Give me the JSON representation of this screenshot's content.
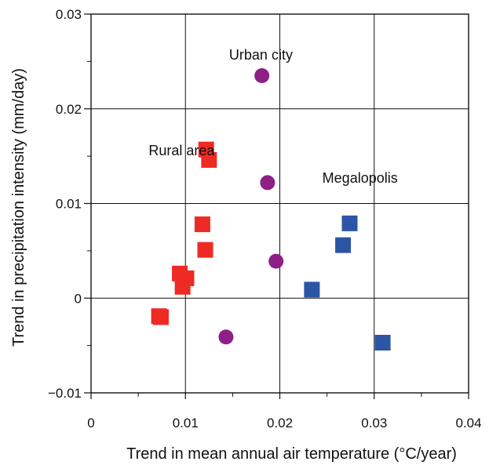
{
  "chart_data": {
    "type": "scatter",
    "xlabel": "Trend in mean annual air temperature (°C/year)",
    "ylabel": "Trend in precipitation intensity (mm/day)",
    "xlim": [
      0,
      0.04
    ],
    "ylim": [
      -0.01,
      0.03
    ],
    "grid": true,
    "x_ticks": [
      {
        "value": 0,
        "label": "0"
      },
      {
        "value": 0.01,
        "label": "0.01"
      },
      {
        "value": 0.02,
        "label": "0.02"
      },
      {
        "value": 0.03,
        "label": "0.03"
      },
      {
        "value": 0.04,
        "label": "0.04"
      }
    ],
    "y_ticks": [
      {
        "value": -0.01,
        "label": "−0.01"
      },
      {
        "value": 0,
        "label": "0"
      },
      {
        "value": 0.01,
        "label": "0.01"
      },
      {
        "value": 0.02,
        "label": "0.02"
      },
      {
        "value": 0.03,
        "label": "0.03"
      }
    ],
    "series": [
      {
        "name": "Rural area",
        "marker": "square",
        "color": "#ee2a24",
        "points": [
          {
            "x": 0.0122,
            "y": 0.0157
          },
          {
            "x": 0.0125,
            "y": 0.0146
          },
          {
            "x": 0.0118,
            "y": 0.0078
          },
          {
            "x": 0.0121,
            "y": 0.0051
          },
          {
            "x": 0.0094,
            "y": 0.0026
          },
          {
            "x": 0.0101,
            "y": 0.0021
          },
          {
            "x": 0.0097,
            "y": 0.0012
          },
          {
            "x": 0.0072,
            "y": -0.0019
          },
          {
            "x": 0.0074,
            "y": -0.002
          }
        ]
      },
      {
        "name": "Urban city",
        "marker": "circle",
        "color": "#8e1f87",
        "points": [
          {
            "x": 0.0181,
            "y": 0.0235
          },
          {
            "x": 0.0187,
            "y": 0.0122
          },
          {
            "x": 0.0196,
            "y": 0.0039
          },
          {
            "x": 0.0143,
            "y": -0.0041
          }
        ]
      },
      {
        "name": "Megalopolis",
        "marker": "square",
        "color": "#2c55a6",
        "points": [
          {
            "x": 0.0274,
            "y": 0.0079
          },
          {
            "x": 0.0267,
            "y": 0.0056
          },
          {
            "x": 0.0234,
            "y": 0.0009
          },
          {
            "x": 0.0309,
            "y": -0.0047
          }
        ]
      }
    ],
    "annotations": [
      {
        "text": "Urban city",
        "x": 0.018,
        "y": 0.0257
      },
      {
        "text": "Rural area",
        "x": 0.0096,
        "y": 0.0156
      },
      {
        "text": "Megalopolis",
        "x": 0.0285,
        "y": 0.0127
      }
    ]
  }
}
